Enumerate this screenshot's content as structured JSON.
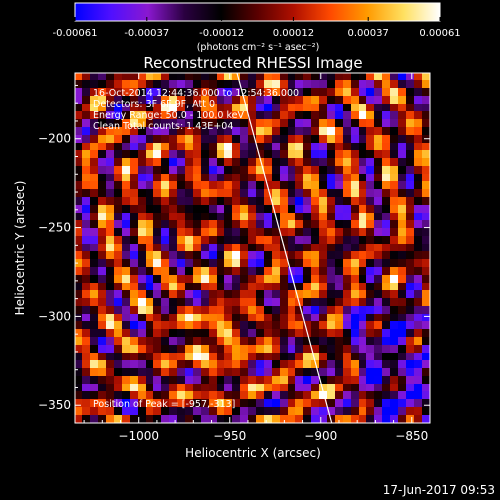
{
  "colorbar": {
    "tick_labels": [
      "-0.00061",
      "-0.00037",
      "-0.00012",
      "0.00012",
      "0.00037",
      "0.00061"
    ],
    "tick_values": [
      -0.00061,
      -0.00037,
      -0.00012,
      0.00012,
      0.00037,
      0.00061
    ],
    "range": [
      -0.00061,
      0.00061
    ],
    "units": "(photons cm⁻² s⁻¹ asec⁻²)",
    "colors": [
      "#0000ff",
      "#5010ff",
      "#8a18d0",
      "#2a0040",
      "#000000",
      "#5a0000",
      "#b01000",
      "#ff4a00",
      "#ff9a00",
      "#ffe060",
      "#ffffff"
    ]
  },
  "chart_data": {
    "type": "heatmap",
    "title": "Reconstructed RHESSI Image",
    "xlabel": "Heliocentric X (arcsec)",
    "ylabel": "Heliocentric Y (arcsec)",
    "xlim": [
      -1035,
      -840
    ],
    "ylim": [
      -360,
      -163
    ],
    "x_ticks": [
      -1000,
      -950,
      -900,
      -850
    ],
    "x_tick_labels": [
      "−1000",
      "−950",
      "−900",
      "−850"
    ],
    "y_ticks": [
      -200,
      -250,
      -300,
      -350
    ],
    "y_tick_labels": [
      "−200",
      "−250",
      "−300",
      "−350"
    ],
    "annotations": [
      "16-Oct-2014 12:44:36.000 to 12:54:36.000",
      "Detectors: 3F 6F 9F, Att 0",
      "Energy Range: 50.0 - 100.0 keV",
      "Clean    Total counts: 1.43E+04"
    ],
    "peak_label": "Position of Peak = [-957,-313]",
    "peak": [
      -957,
      -313
    ],
    "limb_line": [
      [
        -946,
        -163
      ],
      [
        -894,
        -360
      ]
    ],
    "grid": false,
    "legend": "none"
  },
  "timestamp": "17-Jun-2017 09:53"
}
